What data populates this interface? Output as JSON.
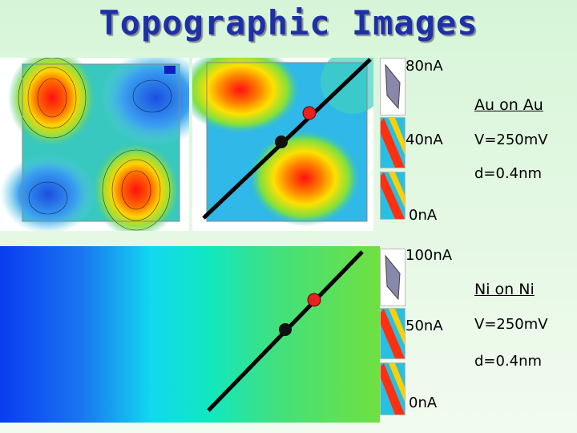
{
  "title": "Topographic Images",
  "top": {
    "scale_max": "80nA",
    "scale_mid": "40nA",
    "scale_min": "0nA",
    "system": "Au on Au",
    "voltage": "V=250mV",
    "distance": "d=0.4nm"
  },
  "bottom": {
    "scale_max": "100nA",
    "scale_mid": "50nA",
    "scale_min": "0nA",
    "system": "Ni on Ni",
    "voltage": "V=250mV",
    "distance": "d=0.4nm"
  },
  "colors": {
    "title": "#1c30a8",
    "marker_red": "#e82020",
    "marker_black": "#101010",
    "line": "#000000"
  },
  "icons": [
    "surface-3d-icon",
    "stripe-map-icon"
  ]
}
